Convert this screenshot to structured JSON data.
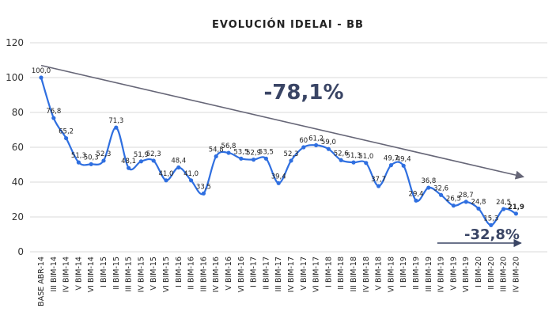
{
  "chart_data": {
    "type": "line",
    "title": "EVOLUCIÓN IDELAI - BB",
    "ylim": [
      0,
      120
    ],
    "yticks": [
      0,
      20,
      40,
      60,
      80,
      100,
      120
    ],
    "grid": true,
    "categories": [
      "BASE ABR-14",
      "III BIM-14",
      "IV BIM-14",
      "V BIM-14",
      "VI BIM-14",
      "I BIM-15",
      "II BIM-15",
      "III BIM-15",
      "IV BIM-15",
      "V BIM-15",
      "VI BIM-15",
      "I BIM-16",
      "II BIM-16",
      "III BIM-16",
      "IV BIM-16",
      "V BIM-16",
      "VI BIM-16",
      "I BIM-17",
      "II BIM-17",
      "III BIM-17",
      "IV BIM-17",
      "V BIM-17",
      "VI BIM-17",
      "I BIM-18",
      "II BIM-18",
      "III BIM-18",
      "IV BIM-18",
      "V BIM-18",
      "VI BIM-18",
      "I BIM-19",
      "II BIM-19",
      "III BIM-19",
      "IV BIM-19",
      "V BIM-19",
      "VI BIM-19",
      "I BIM-20",
      "II BIM-20",
      "III BIM-20",
      "IV BIM-20"
    ],
    "series": [
      {
        "values": [
          100.0,
          76.8,
          65.2,
          51.3,
          50.3,
          52.3,
          71.3,
          48.1,
          51.9,
          52.3,
          41.0,
          48.4,
          41.0,
          33.5,
          54.8,
          56.8,
          53.5,
          52.9,
          53.5,
          39.4,
          52.3,
          60,
          61.2,
          59.0,
          52.6,
          51.3,
          51.0,
          37.7,
          49.7,
          49.4,
          29.4,
          36.8,
          32.6,
          26.5,
          28.7,
          24.8,
          15.3,
          24.5,
          21.9
        ],
        "labels": [
          "100,0",
          "76,8",
          "65,2",
          "51,3",
          "50,3",
          "52,3",
          "71,3",
          "48,1",
          "51,9",
          "52,3",
          "41,0",
          "48,4",
          "41,0",
          "33,5",
          "54,8",
          "56,8",
          "53,5",
          "52,9",
          "53,5",
          "39,4",
          "52,3",
          "60",
          "61,2",
          "59,0",
          "52,6",
          "51,3",
          "51,0",
          "37,7",
          "49,7",
          "49,4",
          "29,4",
          "36,8",
          "32,6",
          "26,5",
          "28,7",
          "24,8",
          "15,3",
          "24,5",
          "21,9"
        ],
        "color": "#2f6fe0"
      }
    ],
    "annotations": [
      {
        "text": "-78,1%",
        "type": "trend-arrow",
        "from": [
          0,
          107
        ],
        "to": [
          38.6,
          43
        ],
        "color": "#666677"
      },
      {
        "text": "-32,8%",
        "type": "range-arrow",
        "from": [
          31.7,
          5
        ],
        "to": [
          38.4,
          5
        ],
        "color": "#3a4565"
      }
    ]
  }
}
